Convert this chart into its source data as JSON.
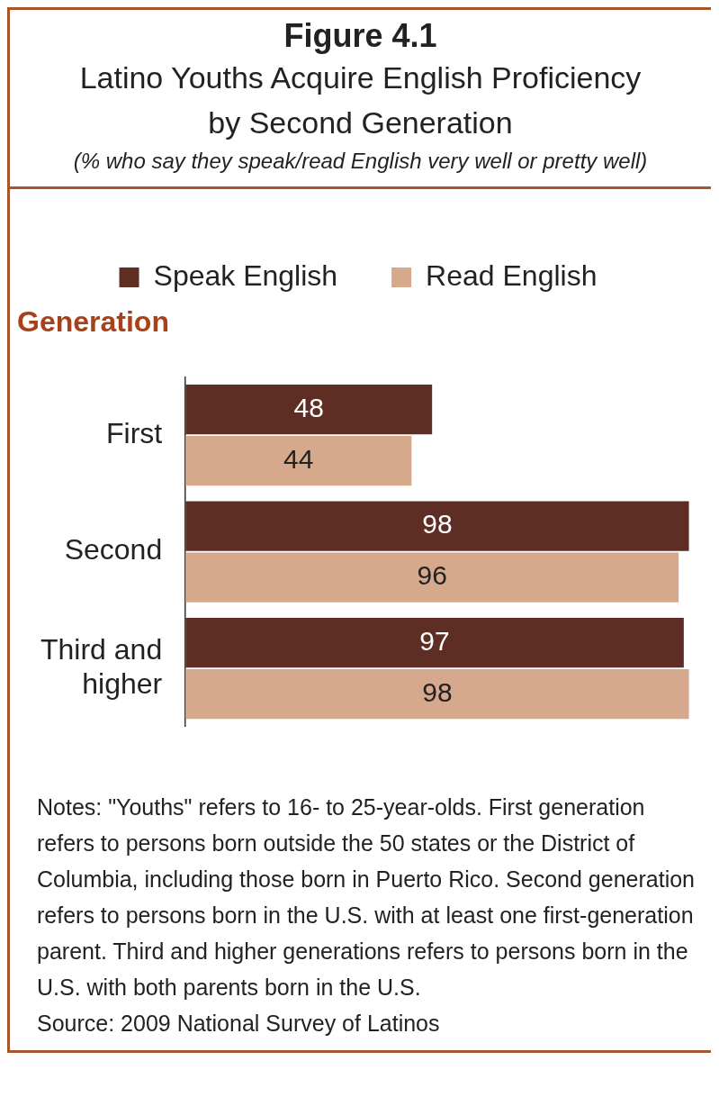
{
  "chart_data": {
    "type": "bar",
    "orientation": "horizontal",
    "title": "Figure 4.1",
    "subtitle": "Latino Youths Acquire English Proficiency by Second Generation",
    "ylabel": "Generation",
    "categories": [
      "First",
      "Second",
      "Third and higher"
    ],
    "series": [
      {
        "name": "Speak English",
        "color": "#5e2e24",
        "values": [
          48,
          98,
          97
        ]
      },
      {
        "name": "Read English",
        "color": "#d6a88c",
        "values": [
          44,
          96,
          98
        ]
      }
    ],
    "data_labels": true,
    "legend": "top",
    "grid": false,
    "annotations": [
      "(% who say they speak/read English very well or pretty well)",
      "Notes: \"Youths\" refers to 16- to 25-year-olds. First generation refers to persons born outside the 50 states or the District of Columbia, including those born in Puerto Rico. Second generation refers to persons born in the U.S. with at least one first-generation parent. Third and higher generations refers to persons born in the U.S. with both parents born in the U.S.",
      "Source: 2009 National Survey of Latinos"
    ]
  }
}
